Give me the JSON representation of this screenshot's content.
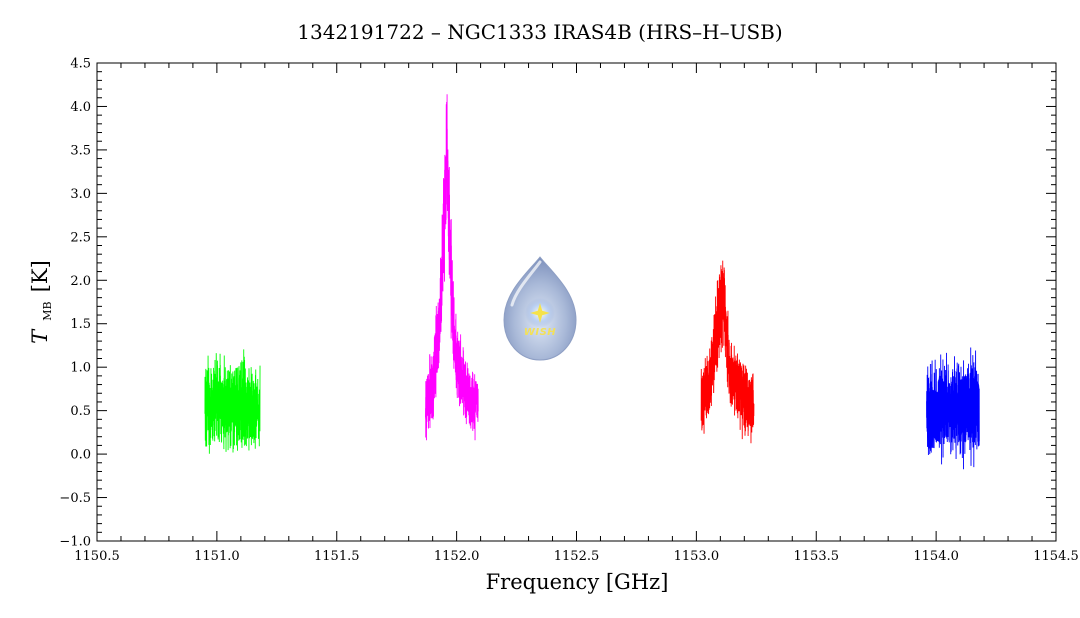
{
  "chart_data": {
    "type": "line",
    "title": "1342191722 – NGC1333 IRAS4B (HRS–H–USB)",
    "xlabel": "Frequency [GHz]",
    "ylabel": {
      "symbol": "T",
      "subscript": "MB",
      "unit": "[K]"
    },
    "xlim": [
      1150.5,
      1154.5
    ],
    "ylim": [
      -1.0,
      4.5
    ],
    "xticks": [
      1150.5,
      1151.0,
      1151.5,
      1152.0,
      1152.5,
      1153.0,
      1153.5,
      1154.0,
      1154.5
    ],
    "yticks": [
      -1.0,
      -0.5,
      0.0,
      0.5,
      1.0,
      1.5,
      2.0,
      2.5,
      3.0,
      3.5,
      4.0,
      4.5
    ],
    "xtick_labels": [
      "1150.5",
      "1151.0",
      "1151.5",
      "1152.0",
      "1152.5",
      "1153.0",
      "1153.5",
      "1154.0",
      "1154.5"
    ],
    "ytick_labels": [
      "−1.0",
      "−0.5",
      "0.0",
      "0.5",
      "1.0",
      "1.5",
      "2.0",
      "2.5",
      "3.0",
      "3.5",
      "4.0",
      "4.5"
    ],
    "grid": false,
    "logo_text": "WISH",
    "series": [
      {
        "color": "#00ff00",
        "x_range": [
          1150.95,
          1151.18
        ],
        "baseline": 0.55,
        "noise": 0.32,
        "x": [
          1150.95,
          1151.0,
          1151.05,
          1151.1,
          1151.15,
          1151.18
        ],
        "y": [
          0.55,
          0.6,
          0.55,
          0.55,
          0.55,
          0.5
        ]
      },
      {
        "color": "#ff00ff",
        "x_range": [
          1151.87,
          1152.09
        ],
        "baseline": 0.55,
        "noise": 0.25,
        "x": [
          1151.87,
          1151.9,
          1151.93,
          1151.96,
          1151.98,
          1152.0,
          1152.03,
          1152.06,
          1152.09
        ],
        "y": [
          0.55,
          0.8,
          1.6,
          3.5,
          1.8,
          1.1,
          0.8,
          0.6,
          0.55
        ]
      },
      {
        "color": "#ff0000",
        "x_range": [
          1153.02,
          1153.24
        ],
        "baseline": 0.55,
        "noise": 0.25,
        "x": [
          1153.02,
          1153.06,
          1153.09,
          1153.11,
          1153.14,
          1153.18,
          1153.24
        ],
        "y": [
          0.55,
          0.9,
          1.5,
          1.8,
          1.0,
          0.7,
          0.55
        ]
      },
      {
        "color": "#0000ff",
        "x_range": [
          1153.96,
          1154.18
        ],
        "baseline": 0.5,
        "noise": 0.35,
        "x": [
          1153.96,
          1154.0,
          1154.05,
          1154.1,
          1154.15,
          1154.18
        ],
        "y": [
          0.5,
          0.5,
          0.55,
          0.5,
          0.5,
          0.5
        ]
      }
    ]
  }
}
